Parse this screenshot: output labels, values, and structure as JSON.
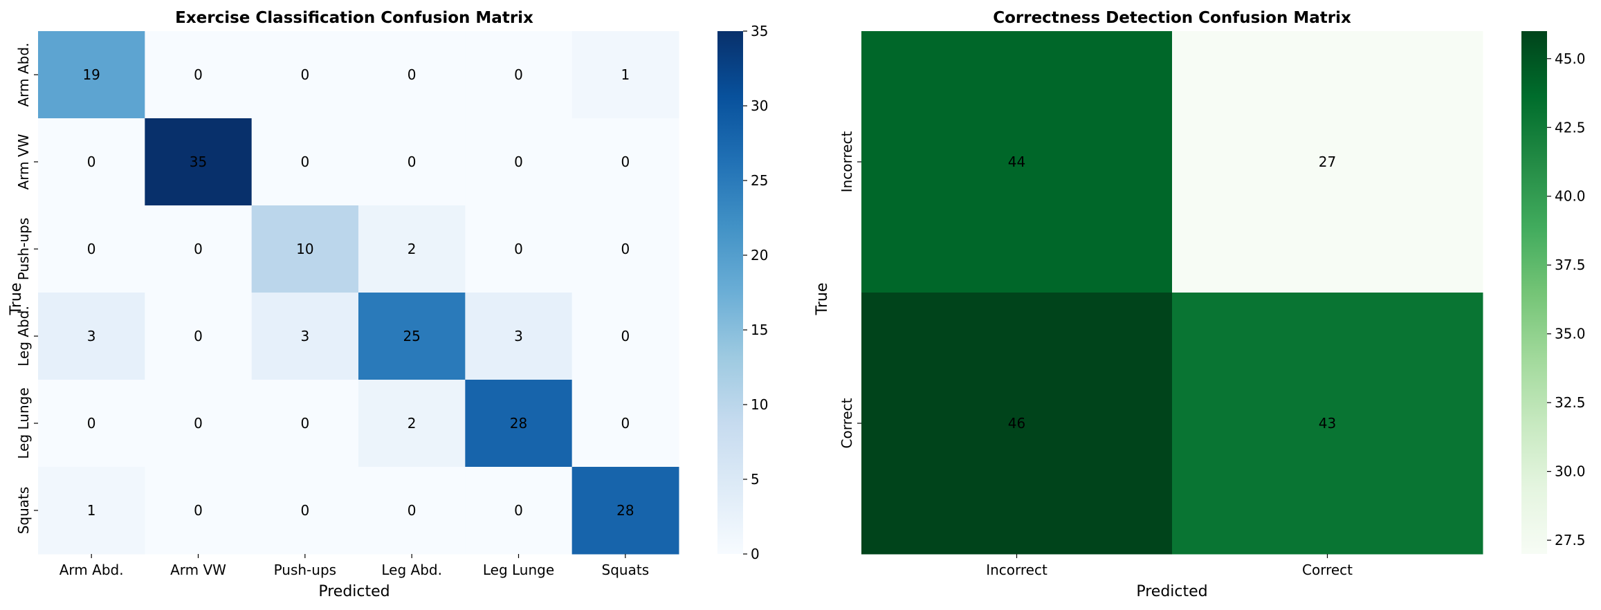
{
  "chart_data": [
    {
      "type": "heatmap",
      "title": "Exercise Classification Confusion Matrix",
      "xlabel": "Predicted",
      "ylabel": "True",
      "x_categories": [
        "Arm Abd.",
        "Arm VW",
        "Push-ups",
        "Leg Abd.",
        "Leg Lunge",
        "Squats"
      ],
      "y_categories": [
        "Arm Abd.",
        "Arm VW",
        "Push-ups",
        "Leg Abd.",
        "Leg Lunge",
        "Squats"
      ],
      "values": [
        [
          19,
          0,
          0,
          0,
          0,
          1
        ],
        [
          0,
          35,
          0,
          0,
          0,
          0
        ],
        [
          0,
          0,
          10,
          2,
          0,
          0
        ],
        [
          3,
          0,
          3,
          25,
          3,
          0
        ],
        [
          0,
          0,
          0,
          2,
          28,
          0
        ],
        [
          1,
          0,
          0,
          0,
          0,
          28
        ]
      ],
      "colormap": "Blues",
      "colors": [
        "#f7fbff",
        "#deebf7",
        "#c6dbef",
        "#9ecae1",
        "#6baed6",
        "#4292c6",
        "#2171b5",
        "#08519c",
        "#08306b"
      ],
      "vmin": 0,
      "vmax": 35,
      "colorbar_ticks": [
        "0",
        "5",
        "10",
        "15",
        "20",
        "25",
        "30",
        "35"
      ],
      "colorbar_tick_values": [
        0,
        5,
        10,
        15,
        20,
        25,
        30,
        35
      ]
    },
    {
      "type": "heatmap",
      "title": "Correctness Detection Confusion Matrix",
      "xlabel": "Predicted",
      "ylabel": "True",
      "x_categories": [
        "Incorrect",
        "Correct"
      ],
      "y_categories": [
        "Incorrect",
        "Correct"
      ],
      "values": [
        [
          44,
          27
        ],
        [
          46,
          43
        ]
      ],
      "colormap": "Greens",
      "colors": [
        "#f7fcf5",
        "#e5f5e0",
        "#c7e9c0",
        "#a1d99b",
        "#74c476",
        "#41ab5d",
        "#238b45",
        "#006d2c",
        "#00441b"
      ],
      "vmin": 27,
      "vmax": 46,
      "colorbar_ticks": [
        "27.5",
        "30.0",
        "32.5",
        "35.0",
        "37.5",
        "40.0",
        "42.5",
        "45.0"
      ],
      "colorbar_tick_values": [
        27.5,
        30.0,
        32.5,
        35.0,
        37.5,
        40.0,
        42.5,
        45.0
      ]
    }
  ]
}
